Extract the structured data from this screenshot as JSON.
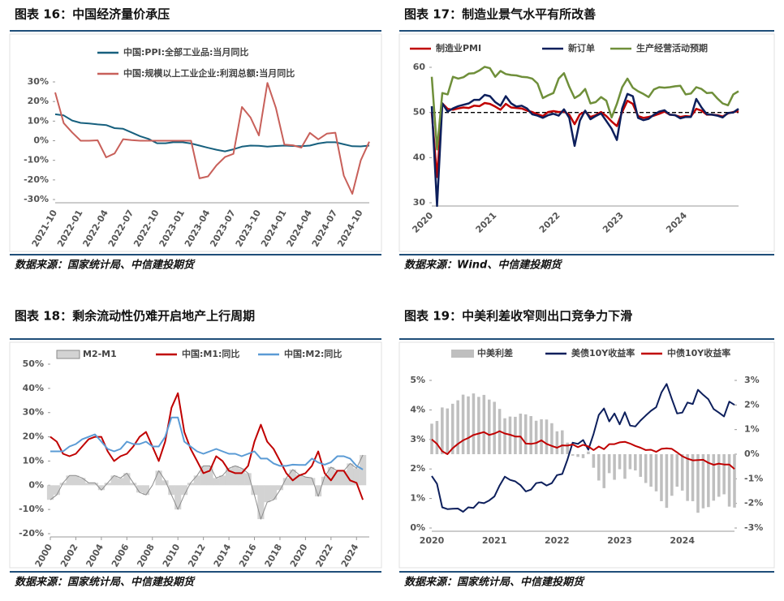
{
  "chart_data": [
    {
      "type": "line",
      "title": "图表 16：中国经济量价承压",
      "source": "数据来源：国家统计局、中信建投期货",
      "categories": [
        "2021-10",
        null,
        null,
        "2022-01",
        null,
        null,
        "2022-04",
        null,
        null,
        "2022-07",
        null,
        null,
        "2022-10",
        null,
        null,
        "2023-01",
        null,
        null,
        "2023-04",
        null,
        null,
        "2023-07",
        null,
        null,
        "2023-10",
        null,
        null,
        "2024-01",
        null,
        null,
        "2024-04",
        null,
        null,
        "2024-07",
        null,
        null,
        "2024-10",
        null
      ],
      "series": [
        {
          "name": "中国:PPI:全部工业品:当月同比",
          "color": "#17607e",
          "values": [
            13.5,
            12.9,
            10.3,
            9.1,
            8.8,
            8.3,
            8.0,
            6.4,
            6.1,
            4.2,
            2.3,
            0.9,
            -1.3,
            -1.3,
            -0.7,
            -0.8,
            -1.4,
            -2.5,
            -3.6,
            -4.6,
            -5.4,
            -4.4,
            -3.0,
            -2.5,
            -2.6,
            -3.0,
            -2.7,
            -2.5,
            -2.7,
            -2.8,
            -2.5,
            -1.4,
            -0.8,
            -0.8,
            -1.8,
            -2.8,
            -2.9,
            -2.5
          ]
        },
        {
          "name": "中国:规模以上工业企业:利润总额:当月同比",
          "color": "#c8605a",
          "values": [
            24.6,
            9.0,
            4.2,
            0,
            0,
            0.2,
            -8.5,
            -6.5,
            0.8,
            0.3,
            0,
            0,
            0,
            0,
            0,
            0,
            0,
            -19.2,
            -18.2,
            -12.6,
            -8.3,
            -6.7,
            17.2,
            11.9,
            2.7,
            29.5,
            16.8,
            -2.0,
            -2.3,
            -3.5,
            4.0,
            0.7,
            3.6,
            4.1,
            -17.8,
            -27.1,
            -10.0,
            -0.5
          ]
        }
      ],
      "ylim": [
        -30,
        30
      ],
      "yticks": [
        {
          "value": -30,
          "label": "-30%"
        },
        {
          "value": -20,
          "label": "-20%"
        },
        {
          "value": -10,
          "label": "-10%"
        },
        {
          "value": 0,
          "label": "0%"
        },
        {
          "value": 10,
          "label": "10%"
        },
        {
          "value": 20,
          "label": "20%"
        },
        {
          "value": 30,
          "label": "30%"
        }
      ]
    },
    {
      "type": "line",
      "title": "图表 17：制造业景气水平有所改善",
      "source": "数据来源：Wind、中信建投期货",
      "categories": [
        "2020",
        null,
        null,
        null,
        null,
        null,
        null,
        null,
        null,
        null,
        null,
        null,
        "2021",
        null,
        null,
        null,
        null,
        null,
        null,
        null,
        null,
        null,
        null,
        null,
        "2022",
        null,
        null,
        null,
        null,
        null,
        null,
        null,
        null,
        null,
        null,
        null,
        "2023",
        null,
        null,
        null,
        null,
        null,
        null,
        null,
        null,
        null,
        null,
        null,
        "2024",
        null,
        null,
        null,
        null,
        null,
        null,
        null,
        null,
        null,
        null
      ],
      "series": [
        {
          "name": "制造业PMI",
          "color": "#c00000",
          "values": [
            50.0,
            35.7,
            52.0,
            50.8,
            50.6,
            50.9,
            51.1,
            51.0,
            51.5,
            51.4,
            52.1,
            51.9,
            51.3,
            50.6,
            51.9,
            51.1,
            51.0,
            50.9,
            50.4,
            50.1,
            49.6,
            49.2,
            50.1,
            50.3,
            50.1,
            50.2,
            49.5,
            47.4,
            49.6,
            50.2,
            49.0,
            49.4,
            50.1,
            49.2,
            48.0,
            47.0,
            50.1,
            52.6,
            51.9,
            49.2,
            48.8,
            49.0,
            49.3,
            49.7,
            50.2,
            49.5,
            49.4,
            49.0,
            49.2,
            49.1,
            50.8,
            50.4,
            49.5,
            49.5,
            49.4,
            49.1,
            49.8,
            50.1,
            50.3
          ]
        },
        {
          "name": "新订单",
          "color": "#0d1f5c",
          "values": [
            51.4,
            29.3,
            52.0,
            50.2,
            50.9,
            51.4,
            51.7,
            52.0,
            52.8,
            52.8,
            53.9,
            53.6,
            52.3,
            51.5,
            53.6,
            52.0,
            51.3,
            51.5,
            50.9,
            49.6,
            49.3,
            48.8,
            49.4,
            49.7,
            49.3,
            50.7,
            48.8,
            42.6,
            48.2,
            50.4,
            48.5,
            49.2,
            49.8,
            48.1,
            46.4,
            43.9,
            50.9,
            54.1,
            53.6,
            48.8,
            48.3,
            48.6,
            49.5,
            50.2,
            50.5,
            49.5,
            49.4,
            48.7,
            49.0,
            49.0,
            53.0,
            51.1,
            49.6,
            49.5,
            49.3,
            48.9,
            49.9,
            50.0,
            50.8
          ]
        },
        {
          "name": "生产经营活动预期",
          "color": "#6f8f3a",
          "values": [
            57.9,
            41.8,
            54.3,
            54.0,
            57.9,
            57.5,
            57.8,
            58.6,
            58.7,
            59.3,
            60.1,
            59.8,
            57.9,
            59.2,
            58.5,
            58.3,
            58.2,
            57.9,
            57.8,
            57.5,
            56.4,
            53.2,
            53.8,
            54.3,
            57.5,
            58.7,
            55.7,
            53.2,
            53.9,
            55.2,
            52.0,
            52.3,
            53.4,
            52.6,
            48.9,
            51.9,
            55.6,
            57.5,
            55.5,
            54.7,
            54.1,
            53.4,
            55.1,
            55.6,
            55.5,
            55.6,
            55.8,
            55.9,
            54.0,
            54.2,
            55.6,
            55.2,
            54.3,
            54.4,
            53.1,
            52.0,
            51.6,
            54.0,
            54.7
          ]
        }
      ],
      "reference_line": 50,
      "ylim": [
        30,
        60
      ],
      "yticks": [
        30,
        40,
        50,
        60
      ]
    },
    {
      "type": "line",
      "title": "图表 18：剩余流动性仍难开启地产上行周期",
      "source": "数据来源：国家统计局、中信建投期货",
      "x": [
        2000,
        2000.5,
        2001,
        2001.5,
        2002,
        2002.5,
        2003,
        2003.5,
        2004,
        2004.5,
        2005,
        2005.5,
        2006,
        2006.5,
        2007,
        2007.5,
        2008,
        2008.5,
        2009,
        2009.5,
        2010,
        2010.5,
        2011,
        2011.5,
        2012,
        2012.5,
        2013,
        2013.5,
        2014,
        2014.5,
        2015,
        2015.5,
        2016,
        2016.5,
        2017,
        2017.5,
        2018,
        2018.5,
        2019,
        2019.5,
        2020,
        2020.5,
        2021,
        2021.5,
        2022,
        2022.5,
        2023,
        2023.5,
        2024,
        2024.5
      ],
      "series": [
        {
          "name": "M2-M1",
          "type": "area",
          "color": "#d3d3d3",
          "values": [
            -6,
            -4,
            1,
            4,
            4,
            3,
            1,
            1,
            -2,
            1,
            4,
            3,
            5,
            1,
            -3,
            -4,
            0,
            6,
            2,
            -4,
            -10,
            -4,
            1,
            4,
            8,
            8,
            3,
            4,
            7,
            8,
            7,
            5,
            -4,
            -14,
            -7,
            -6,
            -2,
            3,
            6.5,
            4.4,
            3.4,
            3,
            -4.6,
            3.5,
            7.5,
            6,
            6,
            9,
            7,
            12.5
          ]
        },
        {
          "name": "中国:M1:同比",
          "color": "#c00000",
          "values": [
            20,
            18,
            13,
            12,
            13,
            16,
            19,
            20,
            20,
            14,
            10,
            12,
            13,
            16,
            20,
            22,
            16,
            10,
            18,
            32,
            38,
            22,
            15,
            10,
            5,
            6,
            12,
            10,
            6,
            5,
            5,
            8,
            18,
            25,
            18,
            15,
            10,
            5,
            2,
            4,
            5,
            8,
            14,
            5,
            2,
            6,
            6,
            2,
            1,
            -6
          ]
        },
        {
          "name": "中国:M2:同比",
          "color": "#5b9bd5",
          "values": [
            14,
            14,
            14,
            16,
            17,
            19,
            20,
            21,
            18,
            15,
            14,
            15,
            18,
            17,
            17,
            18,
            16,
            16,
            20,
            28,
            28,
            18,
            16,
            14,
            13,
            14,
            15,
            14,
            13,
            13,
            12,
            13,
            14,
            11,
            11,
            9,
            8,
            8,
            8.5,
            8.4,
            8.4,
            11,
            9.4,
            8.5,
            9.5,
            12,
            12,
            11,
            8,
            6.5
          ]
        }
      ],
      "xlim": [
        2000,
        2025
      ],
      "xticks": [
        2000,
        2002,
        2004,
        2006,
        2008,
        2010,
        2012,
        2014,
        2016,
        2018,
        2020,
        2022,
        2024
      ],
      "ylim": [
        -20,
        50
      ],
      "yticks": [
        {
          "value": -20,
          "label": "-20%"
        },
        {
          "value": -10,
          "label": "-10%"
        },
        {
          "value": 0,
          "label": "0%"
        },
        {
          "value": 10,
          "label": "10%"
        },
        {
          "value": 20,
          "label": "20%"
        },
        {
          "value": 30,
          "label": "30%"
        },
        {
          "value": 40,
          "label": "40%"
        },
        {
          "value": 50,
          "label": "50%"
        }
      ]
    },
    {
      "type": "line",
      "title": "图表 19：中美利差收窄则出口竞争力下滑",
      "source": "数据来源：国家统计局、中信建投期货",
      "categories": [
        "2020",
        null,
        null,
        null,
        null,
        null,
        null,
        null,
        null,
        null,
        null,
        null,
        "2021",
        null,
        null,
        null,
        null,
        null,
        null,
        null,
        null,
        null,
        null,
        null,
        "2022",
        null,
        null,
        null,
        null,
        null,
        null,
        null,
        null,
        null,
        null,
        null,
        "2023",
        null,
        null,
        null,
        null,
        null,
        null,
        null,
        null,
        null,
        null,
        null,
        "2024",
        null,
        null,
        null,
        null,
        null,
        null,
        null,
        null,
        null,
        null
      ],
      "series": [
        {
          "name": "中美利差",
          "type": "bar",
          "axis": "y2",
          "color": "#bfbfbf",
          "values": [
            1.24,
            1.35,
            1.9,
            1.86,
            2.05,
            2.19,
            2.42,
            2.35,
            2.47,
            2.33,
            2.41,
            2.22,
            2.13,
            1.84,
            1.46,
            1.53,
            1.52,
            1.65,
            1.62,
            1.55,
            1.36,
            1.42,
            1.41,
            1.26,
            0.93,
            0.97,
            0.47,
            -0.06,
            -0.11,
            -0.16,
            0.11,
            -0.55,
            -1.07,
            -1.38,
            -0.77,
            -1.04,
            -0.61,
            -1.0,
            -0.61,
            -0.66,
            -0.92,
            -1.17,
            -1.32,
            -1.51,
            -1.91,
            -2.18,
            -1.69,
            -1.32,
            -1.48,
            -1.9,
            -1.91,
            -2.38,
            -2.2,
            -2.15,
            -1.89,
            -1.73,
            -1.63,
            -2.13,
            -2.17
          ]
        },
        {
          "name": "美债10Y收益率",
          "color": "#0d1f5c",
          "values": [
            1.76,
            1.5,
            0.7,
            0.64,
            0.65,
            0.66,
            0.55,
            0.7,
            0.68,
            0.87,
            0.84,
            0.93,
            1.07,
            1.44,
            1.74,
            1.63,
            1.58,
            1.45,
            1.24,
            1.3,
            1.52,
            1.55,
            1.44,
            1.52,
            1.79,
            1.83,
            2.32,
            2.89,
            2.85,
            2.98,
            2.65,
            3.19,
            3.83,
            4.05,
            3.61,
            3.88,
            3.51,
            3.92,
            3.47,
            3.44,
            3.64,
            3.81,
            3.97,
            4.09,
            4.59,
            4.88,
            4.37,
            3.88,
            3.91,
            4.25,
            4.2,
            4.68,
            4.51,
            4.36,
            4.03,
            3.91,
            3.78,
            4.28,
            4.17
          ]
        },
        {
          "name": "中债10Y收益率",
          "color": "#c00000",
          "values": [
            3.0,
            2.85,
            2.6,
            2.5,
            2.7,
            2.85,
            2.97,
            3.05,
            3.15,
            3.2,
            3.25,
            3.15,
            3.2,
            3.28,
            3.2,
            3.16,
            3.1,
            3.1,
            2.86,
            2.85,
            2.88,
            2.97,
            2.85,
            2.78,
            2.72,
            2.8,
            2.79,
            2.83,
            2.74,
            2.82,
            2.76,
            2.64,
            2.76,
            2.67,
            2.84,
            2.84,
            2.9,
            2.92,
            2.86,
            2.78,
            2.72,
            2.64,
            2.65,
            2.58,
            2.68,
            2.7,
            2.68,
            2.56,
            2.43,
            2.35,
            2.29,
            2.3,
            2.31,
            2.21,
            2.14,
            2.18,
            2.15,
            2.15,
            2.0
          ]
        }
      ],
      "ylim": [
        0,
        5
      ],
      "yticks": [
        {
          "value": 0,
          "label": "0%"
        },
        {
          "value": 1,
          "label": "1%"
        },
        {
          "value": 2,
          "label": "2%"
        },
        {
          "value": 3,
          "label": "3%"
        },
        {
          "value": 4,
          "label": "4%"
        },
        {
          "value": 5,
          "label": "5%"
        }
      ],
      "y2lim": [
        -3,
        3
      ],
      "y2ticks": [
        {
          "value": -3,
          "label": "-3%"
        },
        {
          "value": -2,
          "label": "-2%"
        },
        {
          "value": -1,
          "label": "-1%"
        },
        {
          "value": 0,
          "label": "0%"
        },
        {
          "value": 1,
          "label": "1%"
        },
        {
          "value": 2,
          "label": "2%"
        },
        {
          "value": 3,
          "label": "3%"
        }
      ]
    }
  ]
}
